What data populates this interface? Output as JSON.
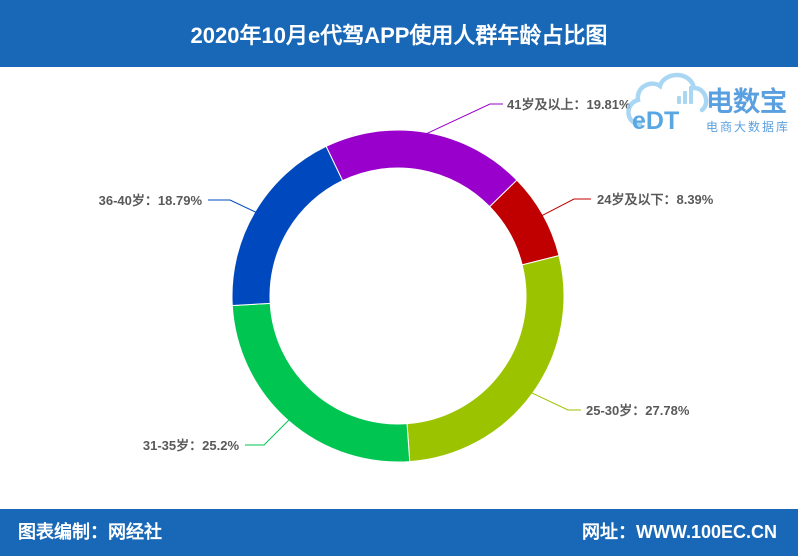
{
  "colors": {
    "brand": "#1868B7"
  },
  "logo": {
    "mark": "eDT",
    "name": "电数宝",
    "tagline": "电商大数据库"
  },
  "footer": {
    "credit": "图表编制：网经社",
    "website": "网址：WWW.100EC.CN"
  },
  "chart_data": {
    "type": "pie",
    "doughnut": true,
    "title": "2020年10月e代驾APP使用人群年龄占比图",
    "categories": [
      "24岁及以下",
      "25-30岁",
      "31-35岁",
      "36-40岁",
      "41岁及以上"
    ],
    "values": [
      8.39,
      27.78,
      25.2,
      18.79,
      19.81
    ],
    "unit": "%",
    "colors": [
      "#C00000",
      "#9CC300",
      "#00C651",
      "#0048BE",
      "#9A00CC"
    ],
    "legend": false
  }
}
